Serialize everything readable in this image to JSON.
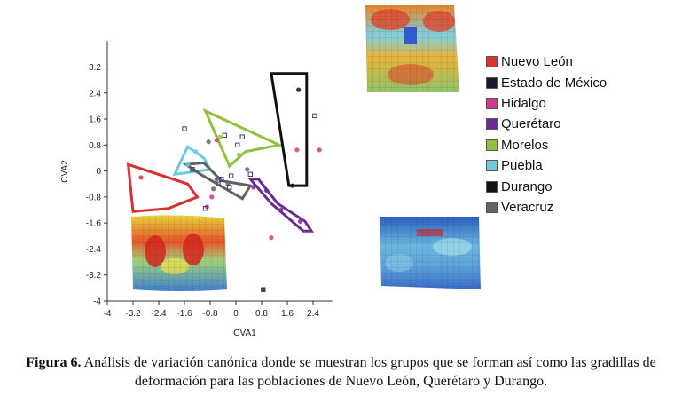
{
  "chart_data": {
    "type": "scatter",
    "xlabel": "CVA1",
    "ylabel": "CVA2",
    "xlim": [
      -4,
      3
    ],
    "ylim": [
      -4,
      4
    ],
    "x_ticks": [
      "-4",
      "-3.2",
      "-2.4",
      "-1.6",
      "-0.8",
      "0",
      "0.8",
      "1.6",
      "2.4"
    ],
    "y_ticks": [
      "3.2",
      "2.4",
      "1.6",
      "0.8",
      "0",
      "-0.8",
      "-1.6",
      "-2.4",
      "-3.2",
      "-4"
    ],
    "legend_position": "right",
    "series": [
      {
        "name": "Nuevo León",
        "color": "#d93030",
        "hull": [
          [
            -3.35,
            0.2
          ],
          [
            -3.2,
            -1.25
          ],
          [
            -2.1,
            -1.15
          ],
          [
            -1.2,
            -0.8
          ],
          [
            -1.5,
            -0.4
          ]
        ],
        "points": [
          [
            -2.95,
            -0.2
          ]
        ]
      },
      {
        "name": "Estado de México",
        "color": "#1a1a2e",
        "hull": [],
        "points": [
          [
            0.85,
            -3.65
          ]
        ]
      },
      {
        "name": "Hidalgo",
        "color": "#cc3a8e",
        "hull": [],
        "points": [
          [
            -0.9,
            -1.1
          ],
          [
            1.1,
            -2.05
          ],
          [
            2.6,
            0.65
          ],
          [
            1.9,
            0.65
          ],
          [
            -0.6,
            0.95
          ],
          [
            -0.75,
            -0.8
          ]
        ]
      },
      {
        "name": "Querétaro",
        "color": "#6a2c91",
        "hull": [
          [
            0.7,
            -0.25
          ],
          [
            1.3,
            -1.0
          ],
          [
            2.15,
            -1.55
          ],
          [
            2.35,
            -1.85
          ],
          [
            2.1,
            -1.85
          ],
          [
            1.1,
            -1.0
          ],
          [
            0.45,
            -0.25
          ]
        ],
        "points": [
          [
            0.95,
            -0.6
          ],
          [
            1.4,
            -1.2
          ],
          [
            2.0,
            -1.55
          ],
          [
            0.55,
            -0.5
          ]
        ]
      },
      {
        "name": "Morelos",
        "color": "#8fc23a",
        "hull": [
          [
            -0.95,
            1.85
          ],
          [
            1.35,
            0.8
          ],
          [
            0.3,
            0.6
          ],
          [
            -0.2,
            0.15
          ]
        ],
        "points": [
          [
            -0.5,
            1.05
          ],
          [
            0.1,
            0.5
          ]
        ]
      },
      {
        "name": "Puebla",
        "color": "#6ecad8",
        "hull": [
          [
            -1.5,
            0.75
          ],
          [
            -1.0,
            0.4
          ],
          [
            -0.8,
            0.05
          ],
          [
            -1.9,
            -0.1
          ]
        ],
        "points": [
          [
            -1.25,
            0.6
          ],
          [
            -1.5,
            0.2
          ]
        ]
      },
      {
        "name": "Durango",
        "color": "#111111",
        "hull": [
          [
            1.1,
            3.0
          ],
          [
            2.2,
            3.0
          ],
          [
            2.2,
            -0.45
          ],
          [
            1.65,
            -0.45
          ]
        ],
        "points": [
          [
            1.95,
            2.5
          ],
          [
            1.75,
            -0.45
          ]
        ]
      },
      {
        "name": "Veracruz",
        "color": "#5f6368",
        "hull": [
          [
            -1.55,
            0.2
          ],
          [
            -1.0,
            0.25
          ],
          [
            -0.45,
            -0.3
          ],
          [
            0.45,
            -0.45
          ],
          [
            0.2,
            -0.85
          ],
          [
            -1.1,
            -0.1
          ]
        ],
        "points": [
          [
            -0.85,
            0.9
          ],
          [
            -0.25,
            -0.4
          ],
          [
            0.35,
            0.05
          ],
          [
            -0.7,
            -0.55
          ],
          [
            -0.6,
            -0.25
          ]
        ]
      }
    ],
    "open_points": [
      [
        -1.6,
        1.3
      ],
      [
        -0.95,
        -1.15
      ],
      [
        -0.55,
        -0.4
      ],
      [
        -0.35,
        1.1
      ],
      [
        -0.15,
        -0.15
      ],
      [
        0.05,
        0.8
      ],
      [
        0.2,
        1.05
      ],
      [
        -0.2,
        -0.5
      ],
      [
        0.45,
        -0.1
      ],
      [
        2.45,
        1.7
      ],
      [
        -0.6,
        -1.6
      ],
      [
        -0.45,
        -0.25
      ],
      [
        -1.35,
        0.05
      ],
      [
        0.85,
        -3.65
      ]
    ]
  },
  "legend_colors_note": "",
  "caption": {
    "label": "Figura 6.",
    "text": " Análisis de variación canónica donde se muestran los grupos que se forman así como las gradillas de deformación para las poblaciones de Nuevo León, Querétaro y Durango."
  }
}
